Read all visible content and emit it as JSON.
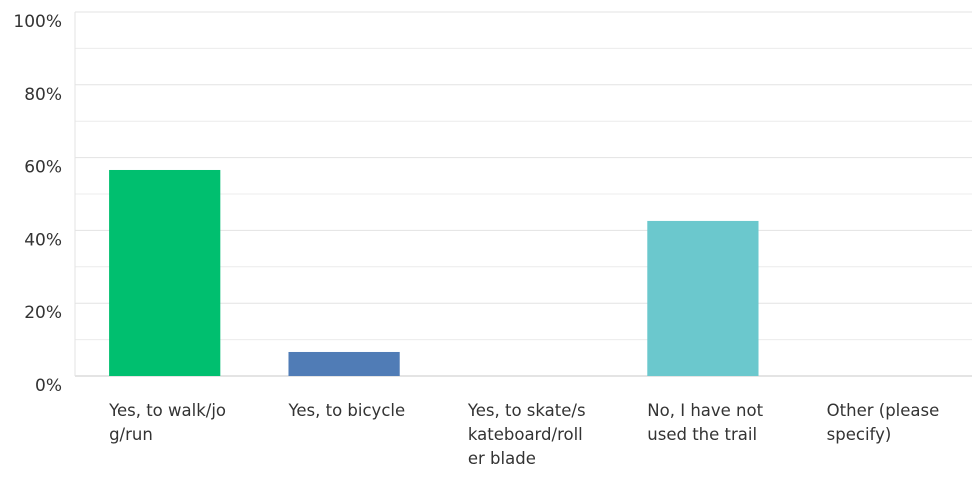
{
  "chart_data": {
    "type": "bar",
    "categories": [
      "Yes, to walk/jog/run",
      "Yes, to bicycle",
      "Yes, to skate/skateboard/roller blade",
      "No, I have not used the trail",
      "Other (please specify)"
    ],
    "values": [
      56.6,
      6.6,
      0,
      42.6,
      0
    ],
    "colors": [
      "#00bf6f",
      "#507cb6",
      "#f9be00",
      "#6bc8cd",
      "#ff8b4f"
    ],
    "ylim": [
      0,
      100
    ],
    "yticks": [
      {
        "value": 0,
        "label": "0%"
      },
      {
        "value": 20,
        "label": "20%"
      },
      {
        "value": 40,
        "label": "40%"
      },
      {
        "value": 60,
        "label": "60%"
      },
      {
        "value": 80,
        "label": "80%"
      },
      {
        "value": 100,
        "label": "100%"
      }
    ],
    "minor_yticks": [
      10,
      30,
      50,
      70,
      90
    ],
    "grid": true
  }
}
